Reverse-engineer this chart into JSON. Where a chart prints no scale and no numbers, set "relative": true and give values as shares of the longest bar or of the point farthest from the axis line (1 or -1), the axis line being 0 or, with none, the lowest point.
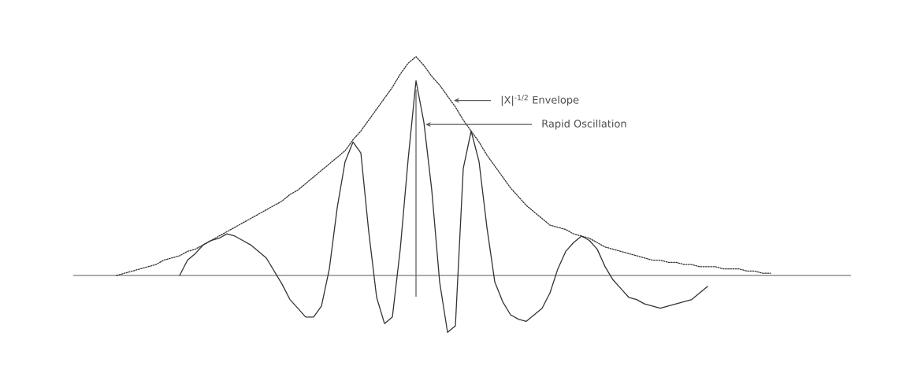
{
  "chart_data": {
    "type": "line",
    "relative": true,
    "categories": [
      null,
      null,
      null,
      null,
      null,
      null,
      null,
      null,
      null,
      null,
      null,
      null,
      null,
      null,
      null,
      null,
      null,
      null,
      null,
      null,
      null,
      null,
      null,
      null,
      null,
      null,
      null,
      null,
      null,
      null,
      null,
      null,
      null,
      null,
      null,
      null,
      null,
      null,
      null,
      null,
      null,
      null,
      null,
      null,
      null,
      null,
      null,
      null,
      null,
      null,
      null,
      null,
      null,
      null,
      null,
      null,
      null,
      null,
      null,
      null,
      null,
      null,
      null,
      null,
      null,
      null,
      null,
      null,
      null,
      null,
      null,
      null,
      null,
      null,
      null,
      null,
      null,
      null,
      null,
      null,
      null,
      null,
      null,
      null
    ],
    "series": [
      {
        "color": "#333333",
        "line_style": "solid",
        "values": [
          null,
          null,
          null,
          null,
          null,
          null,
          null,
          null,
          0,
          0.07,
          0.1,
          0.14,
          0.16,
          0.17,
          0.19,
          0.18,
          0.16,
          0.14,
          0.11,
          0.08,
          0.02,
          -0.04,
          -0.11,
          -0.15,
          -0.19,
          -0.19,
          -0.14,
          0.03,
          0.31,
          0.52,
          0.61,
          0.56,
          0.2,
          -0.1,
          -0.22,
          -0.19,
          0.12,
          0.53,
          0.89,
          0.7,
          0.39,
          -0.03,
          -0.26,
          -0.23,
          0.49,
          0.66,
          0.52,
          0.22,
          -0.03,
          -0.12,
          -0.18,
          -0.2,
          -0.21,
          -0.18,
          -0.15,
          -0.08,
          0.03,
          0.11,
          0.15,
          0.18,
          0.16,
          0.12,
          0.04,
          -0.02,
          -0.06,
          -0.1,
          -0.11,
          -0.13,
          -0.14,
          -0.15,
          -0.14,
          -0.13,
          -0.12,
          -0.11,
          -0.08,
          -0.05,
          null,
          null,
          null,
          null,
          null,
          null,
          null,
          null
        ]
      },
      {
        "color": "#333333",
        "line_style": "dotted",
        "values": [
          0,
          0.01,
          0.02,
          0.03,
          0.04,
          0.05,
          0.07,
          0.08,
          0.09,
          0.11,
          0.12,
          0.14,
          0.16,
          0.18,
          0.2,
          0.22,
          0.24,
          0.26,
          0.28,
          0.3,
          0.32,
          0.34,
          0.37,
          0.39,
          0.42,
          0.45,
          0.48,
          0.51,
          0.54,
          0.57,
          0.62,
          0.66,
          0.71,
          0.76,
          0.81,
          0.86,
          0.92,
          0.97,
          1,
          0.96,
          0.91,
          0.87,
          0.82,
          0.77,
          0.71,
          0.66,
          0.61,
          0.55,
          0.5,
          0.45,
          0.4,
          0.36,
          0.32,
          0.29,
          0.26,
          0.23,
          0.22,
          0.21,
          0.19,
          0.18,
          0.17,
          0.15,
          0.13,
          0.12,
          0.11,
          0.1,
          0.09,
          0.08,
          0.07,
          0.07,
          0.06,
          0.06,
          0.05,
          0.05,
          0.04,
          0.04,
          0.04,
          0.03,
          0.03,
          0.03,
          0.02,
          0.02,
          0.01,
          0.01
        ]
      }
    ],
    "annotations": [
      "|X|$^{-1/2}$ Envelope",
      "Rapid Oscillation"
    ]
  }
}
